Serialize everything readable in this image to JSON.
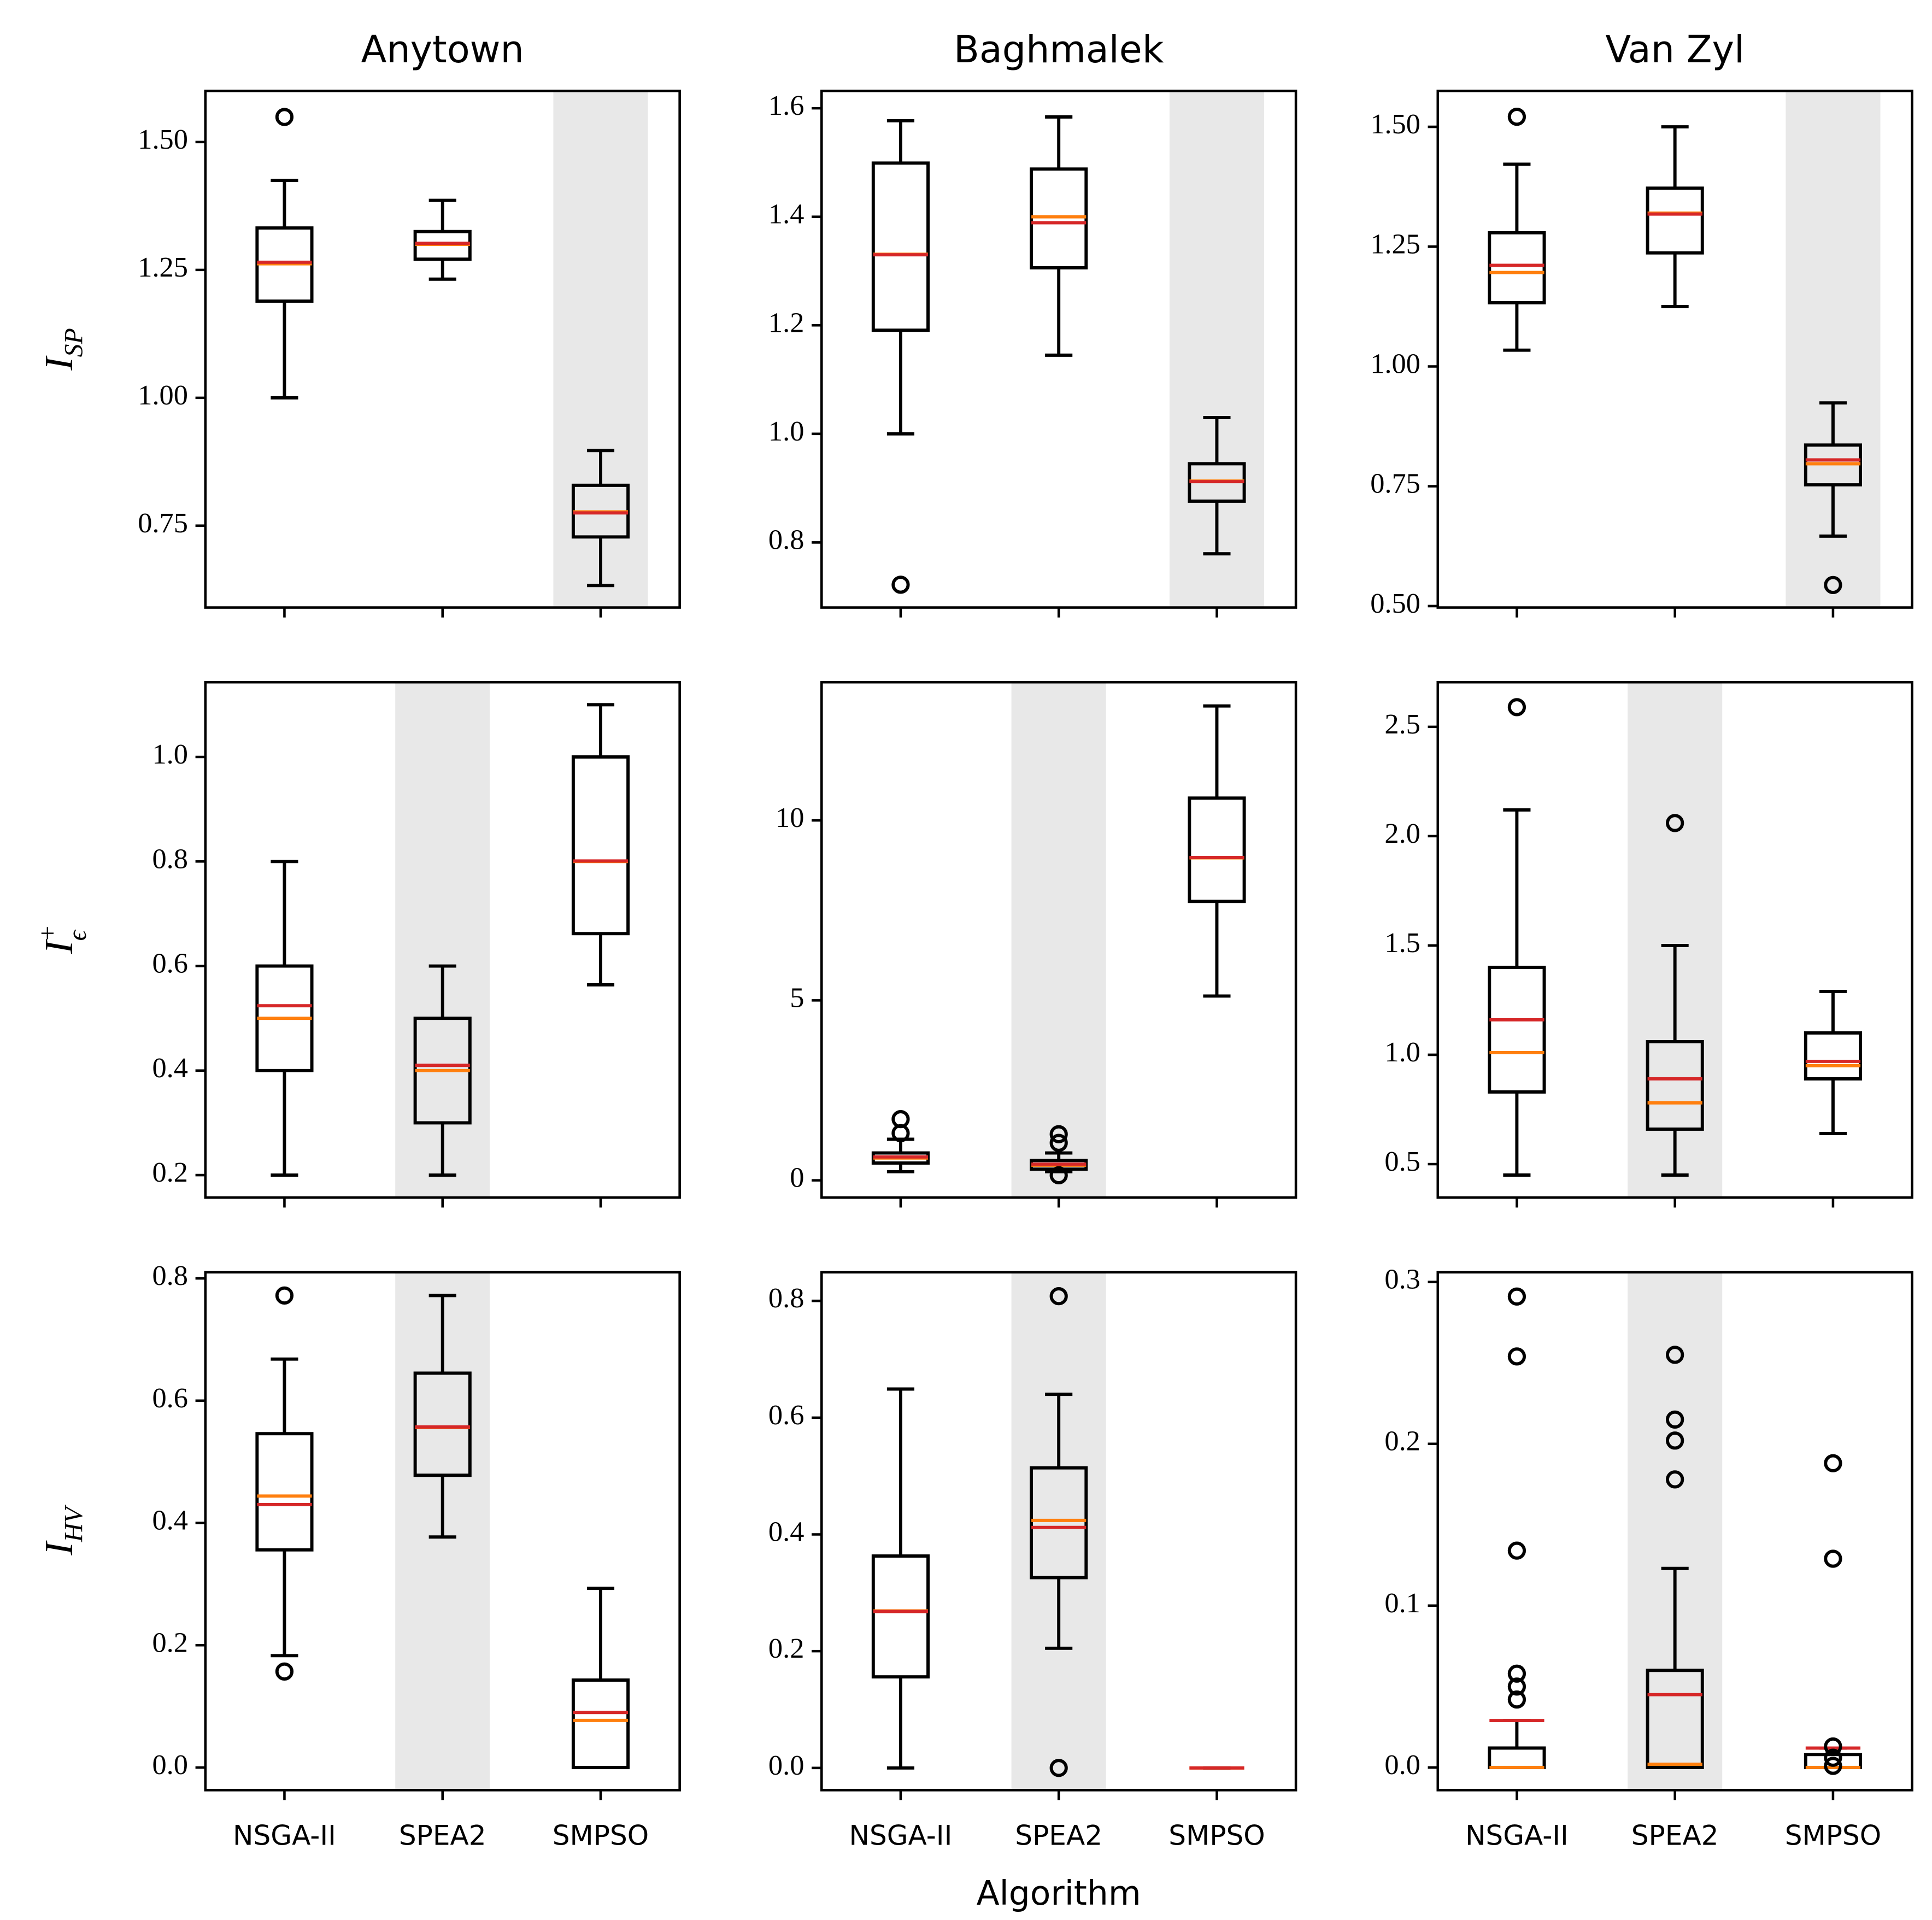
{
  "chart_data": [
    {
      "type": "box",
      "title": "Anytown",
      "ylabel": {
        "base": "I",
        "sub": "SP"
      },
      "categories": [
        null,
        null,
        null
      ],
      "highlight": 2,
      "ylim": [
        0.59,
        1.6
      ],
      "yticks": [
        {
          "value": 0.75,
          "label": "0.75"
        },
        {
          "value": 1.0,
          "label": "1.00"
        },
        {
          "value": 1.25,
          "label": "1.25"
        },
        {
          "value": 1.5,
          "label": "1.50"
        }
      ],
      "boxes": [
        {
          "whislo": 1.0,
          "q1": 1.189,
          "median": 1.262,
          "mean": 1.265,
          "q3": 1.332,
          "whishi": 1.425,
          "fliers": [
            1.549
          ]
        },
        {
          "whislo": 1.232,
          "q1": 1.271,
          "median": 1.3,
          "mean": 1.302,
          "q3": 1.325,
          "whishi": 1.386,
          "fliers": []
        },
        {
          "whislo": 0.633,
          "q1": 0.728,
          "median": 0.777,
          "mean": 0.775,
          "q3": 0.829,
          "whishi": 0.897,
          "fliers": []
        }
      ]
    },
    {
      "type": "box",
      "title": "Baghmalek",
      "categories": [
        null,
        null,
        null
      ],
      "highlight": 2,
      "ylim": [
        0.68,
        1.632
      ],
      "yticks": [
        0.8,
        {
          "value": 1.0,
          "label": "1.0"
        },
        1.2,
        1.4,
        1.6
      ],
      "boxes": [
        {
          "whislo": 1.0,
          "q1": 1.191,
          "median": 1.331,
          "mean": 1.33,
          "q3": 1.499,
          "whishi": 1.577,
          "fliers": [
            0.722
          ]
        },
        {
          "whislo": 1.145,
          "q1": 1.306,
          "median": 1.4,
          "mean": 1.389,
          "q3": 1.488,
          "whishi": 1.584,
          "fliers": []
        },
        {
          "whislo": 0.779,
          "q1": 0.876,
          "median": 0.913,
          "mean": 0.912,
          "q3": 0.945,
          "whishi": 1.03,
          "fliers": []
        }
      ]
    },
    {
      "type": "box",
      "title": "Van Zyl",
      "categories": [
        null,
        null,
        null
      ],
      "highlight": 2,
      "ylim": [
        0.497,
        1.575
      ],
      "yticks": [
        {
          "value": 0.5,
          "label": "0.50"
        },
        {
          "value": 0.75,
          "label": "0.75"
        },
        {
          "value": 1.0,
          "label": "1.00"
        },
        {
          "value": 1.25,
          "label": "1.25"
        },
        {
          "value": 1.5,
          "label": "1.50"
        }
      ],
      "boxes": [
        {
          "whislo": 1.034,
          "q1": 1.133,
          "median": 1.196,
          "mean": 1.211,
          "q3": 1.279,
          "whishi": 1.422,
          "fliers": [
            1.521
          ]
        },
        {
          "whislo": 1.125,
          "q1": 1.237,
          "median": 1.32,
          "mean": 1.318,
          "q3": 1.372,
          "whishi": 1.5,
          "fliers": []
        },
        {
          "whislo": 0.646,
          "q1": 0.753,
          "median": 0.797,
          "mean": 0.805,
          "q3": 0.836,
          "whishi": 0.924,
          "fliers": [
            0.544
          ]
        }
      ]
    },
    {
      "type": "box",
      "ylabel": {
        "base": "I",
        "sub": "ϵ",
        "sup": "+"
      },
      "categories": [
        null,
        null,
        null
      ],
      "highlight": 1,
      "ylim": [
        0.157,
        1.143
      ],
      "yticks": [
        0.2,
        0.4,
        0.6,
        0.8,
        {
          "value": 1.0,
          "label": "1.0"
        }
      ],
      "boxes": [
        {
          "whislo": 0.2,
          "q1": 0.4,
          "median": 0.5,
          "mean": 0.524,
          "q3": 0.6,
          "whishi": 0.8,
          "fliers": []
        },
        {
          "whislo": 0.2,
          "q1": 0.3,
          "median": 0.4,
          "mean": 0.41,
          "q3": 0.5,
          "whishi": 0.6,
          "fliers": []
        },
        {
          "whislo": 0.564,
          "q1": 0.662,
          "median": 0.8,
          "mean": 0.801,
          "q3": 1.0,
          "whishi": 1.1,
          "fliers": []
        }
      ]
    },
    {
      "type": "box",
      "categories": [
        null,
        null,
        null
      ],
      "highlight": 1,
      "ylim": [
        -0.48,
        13.84
      ],
      "yticks": [
        0,
        5,
        10
      ],
      "boxes": [
        {
          "whislo": 0.24,
          "q1": 0.48,
          "median": 0.62,
          "mean": 0.65,
          "q3": 0.76,
          "whishi": 1.14,
          "fliers": [
            1.31,
            1.7
          ]
        },
        {
          "whislo": 0.24,
          "q1": 0.31,
          "median": 0.42,
          "mean": 0.45,
          "q3": 0.55,
          "whishi": 0.76,
          "fliers": [
            0.14,
            1.04,
            1.28
          ]
        },
        {
          "whislo": 5.12,
          "q1": 7.75,
          "median": 8.96,
          "mean": 8.97,
          "q3": 10.62,
          "whishi": 13.18,
          "fliers": []
        }
      ]
    },
    {
      "type": "box",
      "categories": [
        null,
        null,
        null
      ],
      "highlight": 1,
      "ylim": [
        0.347,
        2.704
      ],
      "yticks": [
        0.5,
        {
          "value": 1.0,
          "label": "1.0"
        },
        1.5,
        {
          "value": 2.0,
          "label": "2.0"
        },
        2.5
      ],
      "boxes": [
        {
          "whislo": 0.45,
          "q1": 0.83,
          "median": 1.01,
          "mean": 1.16,
          "q3": 1.4,
          "whishi": 2.12,
          "fliers": [
            2.59
          ]
        },
        {
          "whislo": 0.45,
          "q1": 0.66,
          "median": 0.78,
          "mean": 0.89,
          "q3": 1.06,
          "whishi": 1.5,
          "fliers": [
            2.06
          ]
        },
        {
          "whislo": 0.64,
          "q1": 0.89,
          "median": 0.95,
          "mean": 0.97,
          "q3": 1.1,
          "whishi": 1.29,
          "fliers": []
        }
      ]
    },
    {
      "type": "box",
      "ylabel": {
        "base": "I",
        "sub": "HV"
      },
      "categories": [
        "NSGA-II",
        "SPEA2",
        "SMPSO"
      ],
      "highlight": 1,
      "ylim": [
        -0.037,
        0.81
      ],
      "yticks": [
        {
          "value": 0.0,
          "label": "0.0"
        },
        0.2,
        0.4,
        0.6,
        0.8
      ],
      "boxes": [
        {
          "whislo": 0.183,
          "q1": 0.356,
          "median": 0.444,
          "mean": 0.43,
          "q3": 0.546,
          "whishi": 0.668,
          "fliers": [
            0.157,
            0.772
          ]
        },
        {
          "whislo": 0.377,
          "q1": 0.478,
          "median": 0.556,
          "mean": 0.557,
          "q3": 0.645,
          "whishi": 0.772,
          "fliers": []
        },
        {
          "whislo": 0,
          "q1": 0,
          "median": 0.077,
          "mean": 0.09,
          "q3": 0.143,
          "whishi": 0.293,
          "fliers": []
        }
      ]
    },
    {
      "type": "box",
      "xlabel": "Algorithm",
      "categories": [
        "NSGA-II",
        "SPEA2",
        "SMPSO"
      ],
      "highlight": 1,
      "ylim": [
        -0.038,
        0.849
      ],
      "yticks": [
        {
          "value": 0.0,
          "label": "0.0"
        },
        0.2,
        0.4,
        0.6,
        0.8
      ],
      "boxes": [
        {
          "whislo": 0,
          "q1": 0.156,
          "median": 0.269,
          "mean": 0.268,
          "q3": 0.363,
          "whishi": 0.649,
          "fliers": []
        },
        {
          "whislo": 0.205,
          "q1": 0.326,
          "median": 0.424,
          "mean": 0.412,
          "q3": 0.514,
          "whishi": 0.64,
          "fliers": [
            0,
            0.808
          ]
        },
        {
          "whislo": 0,
          "q1": 0,
          "median": 0,
          "mean": 0,
          "q3": 0,
          "whishi": 0,
          "fliers": []
        }
      ]
    },
    {
      "type": "box",
      "categories": [
        "NSGA-II",
        "SPEA2",
        "SMPSO"
      ],
      "highlight": 1,
      "ylim": [
        -0.014,
        0.306
      ],
      "yticks": [
        {
          "value": 0.0,
          "label": "0.0"
        },
        0.1,
        0.2,
        0.3
      ],
      "boxes": [
        {
          "whislo": 0,
          "q1": 0,
          "median": 0,
          "mean": 0.029,
          "q3": 0.012,
          "whishi": 0.029,
          "fliers": [
            0.042,
            0.05,
            0.058,
            0.134,
            0.254,
            0.291
          ]
        },
        {
          "whislo": 0,
          "q1": 0,
          "median": 0.002,
          "mean": 0.045,
          "q3": 0.06,
          "whishi": 0.123,
          "fliers": [
            0.178,
            0.202,
            0.215,
            0.255
          ]
        },
        {
          "whislo": 0,
          "q1": 0,
          "median": 0,
          "mean": 0.012,
          "q3": 0.008,
          "whishi": 0.012,
          "fliers": [
            0.001,
            0.006,
            0.013,
            0.129,
            0.188
          ]
        }
      ]
    }
  ],
  "style": {
    "highlight_color": "#e8e8e8",
    "median_color": "#ff7f0e",
    "mean_color": "#d62728",
    "line_color": "#000000"
  }
}
